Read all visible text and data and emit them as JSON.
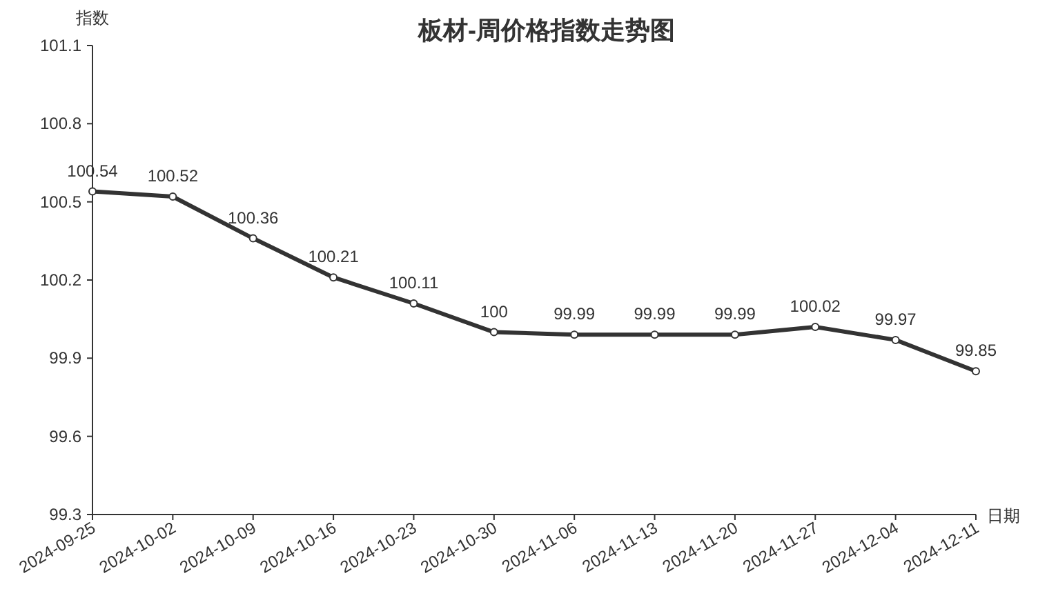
{
  "chart_data": {
    "type": "line",
    "title": "板材-周价格指数走势图",
    "xlabel": "日期",
    "ylabel": "指数",
    "categories": [
      "2024-09-25",
      "2024-10-02",
      "2024-10-09",
      "2024-10-16",
      "2024-10-23",
      "2024-10-30",
      "2024-11-06",
      "2024-11-13",
      "2024-11-20",
      "2024-11-27",
      "2024-12-04",
      "2024-12-11"
    ],
    "series": [
      {
        "color": "#333333",
        "values": [
          100.54,
          100.52,
          100.36,
          100.21,
          100.11,
          100,
          99.99,
          99.99,
          99.99,
          100.02,
          99.97,
          99.85
        ]
      }
    ],
    "ylim": [
      99.3,
      101.1
    ],
    "yticks": [
      99.3,
      99.6,
      99.9,
      100.2,
      100.5,
      100.8,
      101.1
    ],
    "data_labels": true,
    "marker": "circle",
    "line_style": "solid"
  }
}
